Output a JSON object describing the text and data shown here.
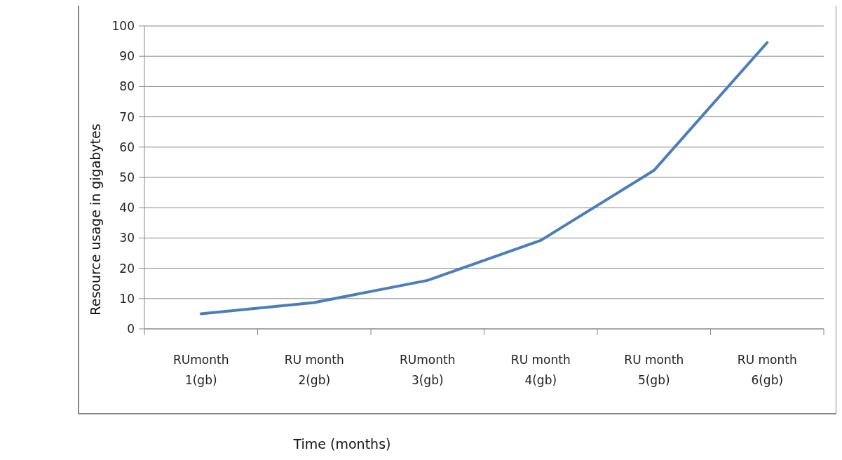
{
  "chart_data": {
    "type": "line",
    "xlabel": "Time (months)",
    "ylabel": "Resource usage in gigabytes",
    "categories": [
      "RUmonth 1(gb)",
      "RU month 2(gb)",
      "RUmonth 3(gb)",
      "RU month 4(gb)",
      "RU month 5(gb)",
      "RU month 6(gb)"
    ],
    "series": [
      {
        "color": "#4a7ebb",
        "values": [
          5,
          8.7,
          16,
          29.2,
          52.3,
          94.5
        ]
      }
    ],
    "ylim": [
      0,
      100
    ],
    "yticks": [
      0,
      10,
      20,
      30,
      40,
      50,
      60,
      70,
      80,
      90,
      100
    ],
    "grid": "y",
    "marker": "none",
    "line_style": "solid"
  }
}
